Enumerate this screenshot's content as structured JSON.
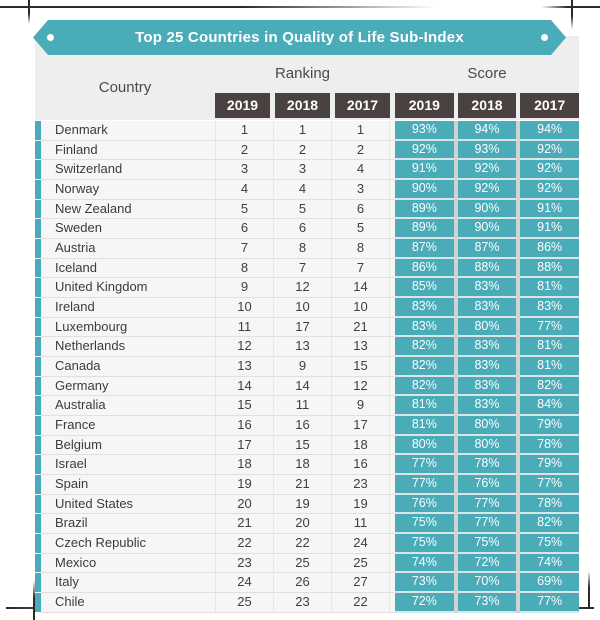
{
  "banner": {
    "title": "Top 25 Countries in Quality of Life Sub-Index",
    "accent_color": "#4aacb8",
    "year_header_color": "#4a4240"
  },
  "header": {
    "country_label": "Country",
    "ranking_label": "Ranking",
    "score_label": "Score"
  },
  "chart_data": {
    "type": "table",
    "title": "Top 25 Countries in Quality of Life Sub-Index",
    "column_groups": [
      "Country",
      "Ranking",
      "Score"
    ],
    "years": [
      "2019",
      "2018",
      "2017"
    ],
    "rows": [
      {
        "country": "Denmark",
        "ranking": [
          1,
          1,
          1
        ],
        "score": [
          "93%",
          "94%",
          "94%"
        ]
      },
      {
        "country": "Finland",
        "ranking": [
          2,
          2,
          2
        ],
        "score": [
          "92%",
          "93%",
          "92%"
        ]
      },
      {
        "country": "Switzerland",
        "ranking": [
          3,
          3,
          4
        ],
        "score": [
          "91%",
          "92%",
          "92%"
        ]
      },
      {
        "country": "Norway",
        "ranking": [
          4,
          4,
          3
        ],
        "score": [
          "90%",
          "92%",
          "92%"
        ]
      },
      {
        "country": "New Zealand",
        "ranking": [
          5,
          5,
          6
        ],
        "score": [
          "89%",
          "90%",
          "91%"
        ]
      },
      {
        "country": "Sweden",
        "ranking": [
          6,
          6,
          5
        ],
        "score": [
          "89%",
          "90%",
          "91%"
        ]
      },
      {
        "country": "Austria",
        "ranking": [
          7,
          8,
          8
        ],
        "score": [
          "87%",
          "87%",
          "86%"
        ]
      },
      {
        "country": "Iceland",
        "ranking": [
          8,
          7,
          7
        ],
        "score": [
          "86%",
          "88%",
          "88%"
        ]
      },
      {
        "country": "United Kingdom",
        "ranking": [
          9,
          12,
          14
        ],
        "score": [
          "85%",
          "83%",
          "81%"
        ]
      },
      {
        "country": "Ireland",
        "ranking": [
          10,
          10,
          10
        ],
        "score": [
          "83%",
          "83%",
          "83%"
        ]
      },
      {
        "country": "Luxembourg",
        "ranking": [
          11,
          17,
          21
        ],
        "score": [
          "83%",
          "80%",
          "77%"
        ]
      },
      {
        "country": "Netherlands",
        "ranking": [
          12,
          13,
          13
        ],
        "score": [
          "82%",
          "83%",
          "81%"
        ]
      },
      {
        "country": "Canada",
        "ranking": [
          13,
          9,
          15
        ],
        "score": [
          "82%",
          "83%",
          "81%"
        ]
      },
      {
        "country": "Germany",
        "ranking": [
          14,
          14,
          12
        ],
        "score": [
          "82%",
          "83%",
          "82%"
        ]
      },
      {
        "country": "Australia",
        "ranking": [
          15,
          11,
          9
        ],
        "score": [
          "81%",
          "83%",
          "84%"
        ]
      },
      {
        "country": "France",
        "ranking": [
          16,
          16,
          17
        ],
        "score": [
          "81%",
          "80%",
          "79%"
        ]
      },
      {
        "country": "Belgium",
        "ranking": [
          17,
          15,
          18
        ],
        "score": [
          "80%",
          "80%",
          "78%"
        ]
      },
      {
        "country": "Israel",
        "ranking": [
          18,
          18,
          16
        ],
        "score": [
          "77%",
          "78%",
          "79%"
        ]
      },
      {
        "country": "Spain",
        "ranking": [
          19,
          21,
          23
        ],
        "score": [
          "77%",
          "76%",
          "77%"
        ]
      },
      {
        "country": "United States",
        "ranking": [
          20,
          19,
          19
        ],
        "score": [
          "76%",
          "77%",
          "78%"
        ]
      },
      {
        "country": "Brazil",
        "ranking": [
          21,
          20,
          11
        ],
        "score": [
          "75%",
          "77%",
          "82%"
        ]
      },
      {
        "country": "Czech Republic",
        "ranking": [
          22,
          22,
          24
        ],
        "score": [
          "75%",
          "75%",
          "75%"
        ]
      },
      {
        "country": "Mexico",
        "ranking": [
          23,
          25,
          25
        ],
        "score": [
          "74%",
          "72%",
          "74%"
        ]
      },
      {
        "country": "Italy",
        "ranking": [
          24,
          26,
          27
        ],
        "score": [
          "73%",
          "70%",
          "69%"
        ]
      },
      {
        "country": "Chile",
        "ranking": [
          25,
          23,
          22
        ],
        "score": [
          "72%",
          "73%",
          "77%"
        ]
      }
    ]
  }
}
